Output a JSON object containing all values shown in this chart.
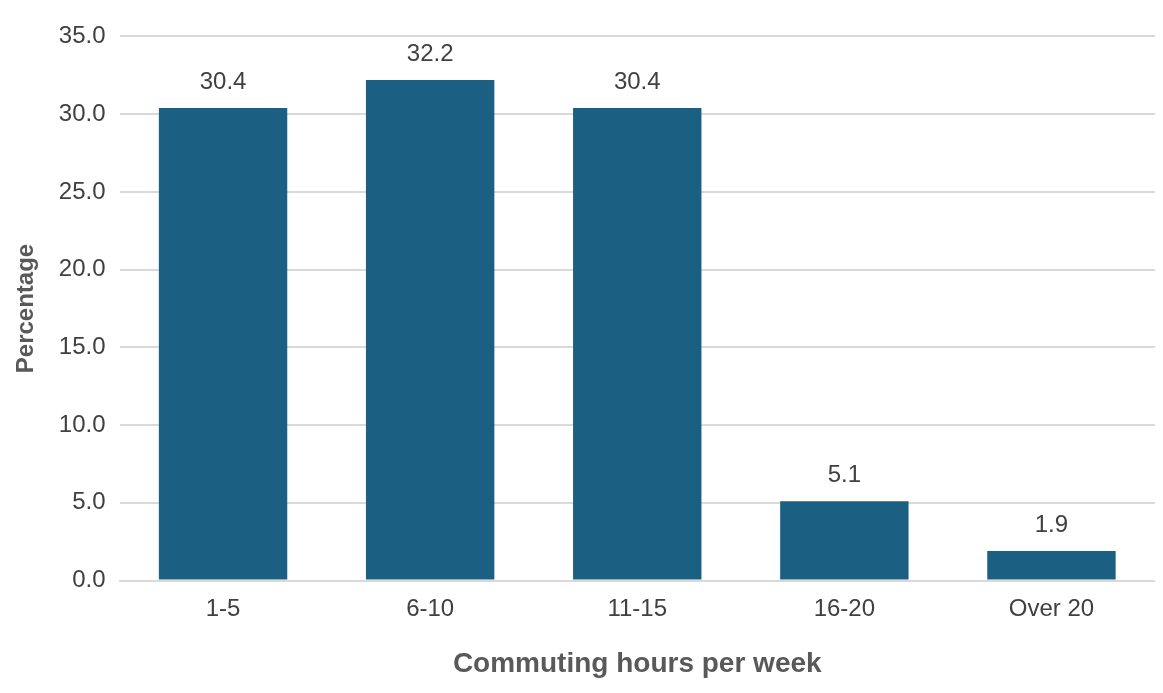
{
  "chart_data": {
    "type": "bar",
    "xlabel": "Commuting hours per week",
    "ylabel": "Percentage",
    "categories": [
      "1-5",
      "6-10",
      "11-15",
      "16-20",
      "Over 20"
    ],
    "series": [
      {
        "color": "#1b6082",
        "values": [
          30.4,
          32.2,
          30.4,
          5.1,
          1.9
        ]
      }
    ],
    "ylim": [
      0,
      35
    ],
    "yticks": [
      {
        "value": 0,
        "label": "0.0"
      },
      {
        "value": 5,
        "label": "5.0"
      },
      {
        "value": 10,
        "label": "10.0"
      },
      {
        "value": 15,
        "label": "15.0"
      },
      {
        "value": 20,
        "label": "20.0"
      },
      {
        "value": 25,
        "label": "25.0"
      },
      {
        "value": 30,
        "label": "30.0"
      },
      {
        "value": 35,
        "label": "35.0"
      }
    ],
    "grid": "y",
    "legend": false,
    "data_labels": true
  }
}
